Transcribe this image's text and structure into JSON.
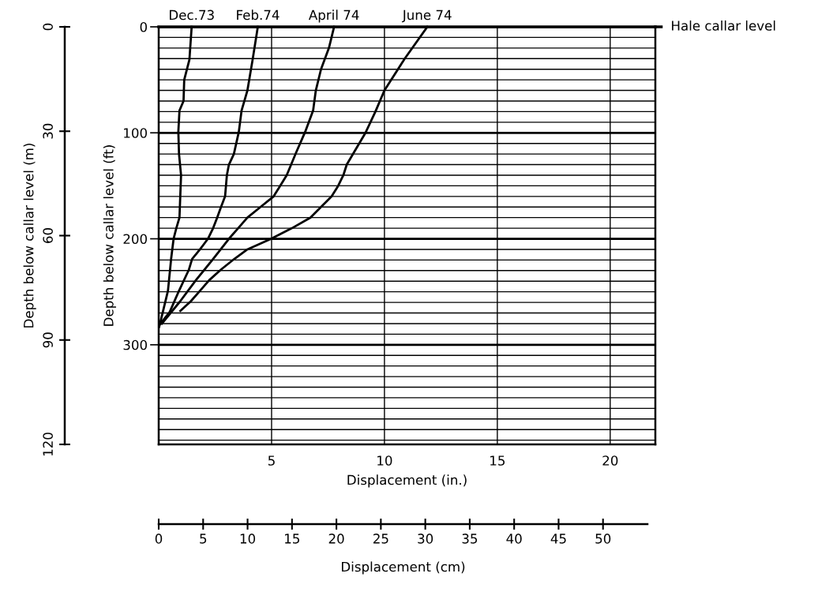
{
  "chart_data": {
    "type": "line",
    "xlabel": "Displacement (in.)",
    "ylabel": "Depth below callar level (ft)",
    "y2label": "Depth below callar level (m)",
    "x2label": "Displacement (cm)",
    "xlim": [
      0,
      22
    ],
    "xticks": [
      5,
      10,
      15,
      20
    ],
    "ylim": [
      394,
      0
    ],
    "yticks": [
      0,
      {
        "value": 10,
        "label": null
      },
      {
        "value": 20,
        "label": null
      },
      {
        "value": 30,
        "label": null
      },
      {
        "value": 40,
        "label": null
      },
      {
        "value": 50,
        "label": null
      },
      {
        "value": 60,
        "label": null
      },
      {
        "value": 70,
        "label": null
      },
      {
        "value": 80,
        "label": null
      },
      {
        "value": 90,
        "label": null
      },
      100,
      {
        "value": 110,
        "label": null
      },
      {
        "value": 120,
        "label": null
      },
      {
        "value": 130,
        "label": null
      },
      {
        "value": 140,
        "label": null
      },
      {
        "value": 150,
        "label": null
      },
      {
        "value": 160,
        "label": null
      },
      {
        "value": 170,
        "label": null
      },
      {
        "value": 180,
        "label": null
      },
      {
        "value": 190,
        "label": null
      },
      200,
      {
        "value": 210,
        "label": null
      },
      {
        "value": 220,
        "label": null
      },
      {
        "value": 230,
        "label": null
      },
      {
        "value": 240,
        "label": null
      },
      {
        "value": 250,
        "label": null
      },
      {
        "value": 260,
        "label": null
      },
      {
        "value": 270,
        "label": null
      },
      {
        "value": 280,
        "label": null
      },
      {
        "value": 290,
        "label": null
      },
      300,
      {
        "value": 310,
        "label": null
      },
      {
        "value": 320,
        "label": null
      },
      {
        "value": 330,
        "label": null
      },
      {
        "value": 340,
        "label": null
      },
      {
        "value": 350,
        "label": null
      },
      {
        "value": 360,
        "label": null
      },
      {
        "value": 370,
        "label": null
      },
      {
        "value": 380,
        "label": null
      },
      {
        "value": 390,
        "label": null
      }
    ],
    "y2lim": [
      120,
      0
    ],
    "y2ticks": [
      0,
      30,
      60,
      90,
      120
    ],
    "x2lim": [
      0,
      55
    ],
    "x2ticks": [
      0,
      5,
      10,
      15,
      20,
      25,
      30,
      35,
      40,
      45,
      50
    ],
    "grid": true,
    "legend": false,
    "marker": "none",
    "line_style": "solid",
    "annotations": [
      "Hale callar level"
    ],
    "series": [
      {
        "name": "Dec.73",
        "color": "#000000",
        "x": [
          1.46,
          1.36,
          1.13,
          1.1,
          0.92,
          0.87,
          0.9,
          0.99,
          0.92,
          0.78,
          0.66,
          0.55,
          0.41,
          0.07,
          0.02
        ],
        "values": [
          0,
          31,
          50,
          70,
          79,
          99,
          120,
          140,
          180,
          190,
          200,
          219,
          249,
          279,
          283
        ]
      },
      {
        "name": "Feb.74",
        "color": "#000000",
        "x": [
          4.39,
          4.16,
          3.93,
          3.67,
          3.55,
          3.33,
          3.11,
          3.02,
          2.94,
          2.76,
          2.59,
          2.41,
          2.18,
          1.83,
          1.48,
          1.34,
          0.9,
          0.49,
          0.08
        ],
        "values": [
          0,
          31,
          60,
          79,
          99,
          120,
          130,
          140,
          160,
          170,
          180,
          190,
          200,
          210,
          219,
          229,
          249,
          269,
          280
        ]
      },
      {
        "name": "April 74",
        "color": "#000000",
        "x": [
          7.77,
          7.54,
          7.19,
          6.96,
          6.84,
          6.49,
          6.08,
          5.67,
          5.38,
          5.09,
          4.51,
          3.93,
          3.52,
          3.11,
          2.41,
          1.65,
          0.95,
          0.14
        ],
        "values": [
          0,
          20,
          40,
          60,
          79,
          99,
          119,
          140,
          150,
          160,
          170,
          180,
          190,
          200,
          219,
          239,
          259,
          280
        ]
      },
      {
        "name": "June 74",
        "color": "#000000",
        "x": [
          11.9,
          10.9,
          10.0,
          9.6,
          9.16,
          8.33,
          8.18,
          7.95,
          7.66,
          7.19,
          6.72,
          5.9,
          4.98,
          3.93,
          3.35,
          2.76,
          2.24,
          1.83,
          1.42,
          0.96
        ],
        "values": [
          0,
          30,
          60,
          80,
          100,
          130,
          140,
          150,
          160,
          170,
          180,
          190,
          200,
          210,
          219,
          229,
          239,
          249,
          259,
          268
        ]
      }
    ]
  }
}
